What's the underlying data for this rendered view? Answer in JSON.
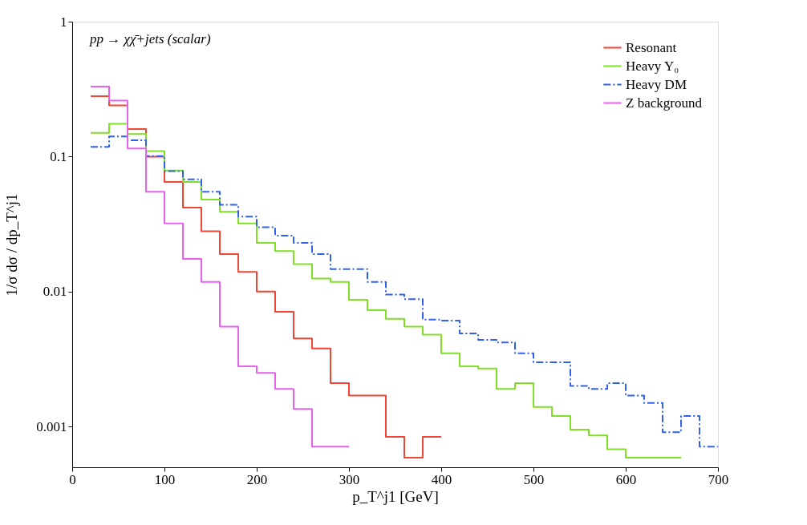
{
  "chart_data": {
    "type": "step",
    "xlabel": "p_T^j1 [GeV]",
    "ylabel": "1/σ dσ / dp_T^j1",
    "annotations": [
      "pp → χχ̄+jets (scalar)"
    ],
    "series": [
      {
        "name": "Resonant",
        "color": "#f04535",
        "line_style": "solid",
        "x": [
          20,
          40,
          60,
          80,
          100,
          120,
          140,
          160,
          180,
          200,
          220,
          240,
          260,
          280,
          300,
          320,
          340,
          360,
          380,
          400
        ],
        "values": [
          0.28,
          0.24,
          0.16,
          0.1,
          0.065,
          0.042,
          0.028,
          0.019,
          0.014,
          0.01,
          0.0071,
          0.0045,
          0.0038,
          0.0021,
          0.0017,
          0.0017,
          0.00084,
          0.00059,
          0.00084,
          0.00084
        ]
      },
      {
        "name": "Heavy Y₀",
        "color": "#80e025",
        "line_style": "solid",
        "x": [
          20,
          40,
          60,
          80,
          100,
          120,
          140,
          160,
          180,
          200,
          220,
          240,
          260,
          280,
          300,
          320,
          340,
          360,
          380,
          400,
          420,
          440,
          460,
          480,
          500,
          520,
          540,
          560,
          580,
          600,
          620,
          640,
          660
        ],
        "values": [
          0.15,
          0.175,
          0.147,
          0.11,
          0.079,
          0.065,
          0.048,
          0.039,
          0.032,
          0.023,
          0.02,
          0.016,
          0.0125,
          0.0118,
          0.0087,
          0.0073,
          0.0063,
          0.0055,
          0.0048,
          0.0035,
          0.0028,
          0.0027,
          0.0019,
          0.0021,
          0.0014,
          0.0012,
          0.00095,
          0.00086,
          0.00068,
          0.00059,
          0.00059,
          0.00059,
          0.00059
        ]
      },
      {
        "name": "Heavy DM",
        "color": "#3060f0",
        "line_style": "dashdot",
        "x": [
          20,
          40,
          60,
          80,
          100,
          120,
          140,
          160,
          180,
          200,
          220,
          240,
          260,
          280,
          300,
          320,
          340,
          360,
          380,
          400,
          420,
          440,
          460,
          480,
          500,
          520,
          540,
          560,
          580,
          600,
          620,
          640,
          660,
          680,
          700
        ],
        "values": [
          0.118,
          0.141,
          0.132,
          0.101,
          0.078,
          0.068,
          0.055,
          0.044,
          0.036,
          0.03,
          0.026,
          0.023,
          0.019,
          0.0147,
          0.0147,
          0.0118,
          0.0095,
          0.0088,
          0.0062,
          0.0061,
          0.0049,
          0.0044,
          0.0042,
          0.0035,
          0.003,
          0.003,
          0.002,
          0.0019,
          0.0021,
          0.0017,
          0.0015,
          0.00091,
          0.0012,
          0.00071,
          0.00071
        ]
      },
      {
        "name": "Z background",
        "color": "#e860f0",
        "line_style": "solid",
        "x": [
          20,
          40,
          60,
          80,
          100,
          120,
          140,
          160,
          180,
          200,
          220,
          240,
          260,
          280,
          300
        ],
        "values": [
          0.33,
          0.26,
          0.115,
          0.055,
          0.032,
          0.0175,
          0.0118,
          0.0055,
          0.0028,
          0.0025,
          0.0019,
          0.00135,
          0.00071,
          0.00071,
          0.00071
        ]
      }
    ],
    "xlim": [
      0,
      700
    ],
    "xticks": [
      0,
      100,
      200,
      300,
      400,
      500,
      600,
      700
    ],
    "ylim": [
      0.0005,
      1
    ],
    "yticks": [
      0.001,
      0.01,
      0.1,
      1
    ],
    "log": "y",
    "grid": false,
    "legend": "top right"
  }
}
